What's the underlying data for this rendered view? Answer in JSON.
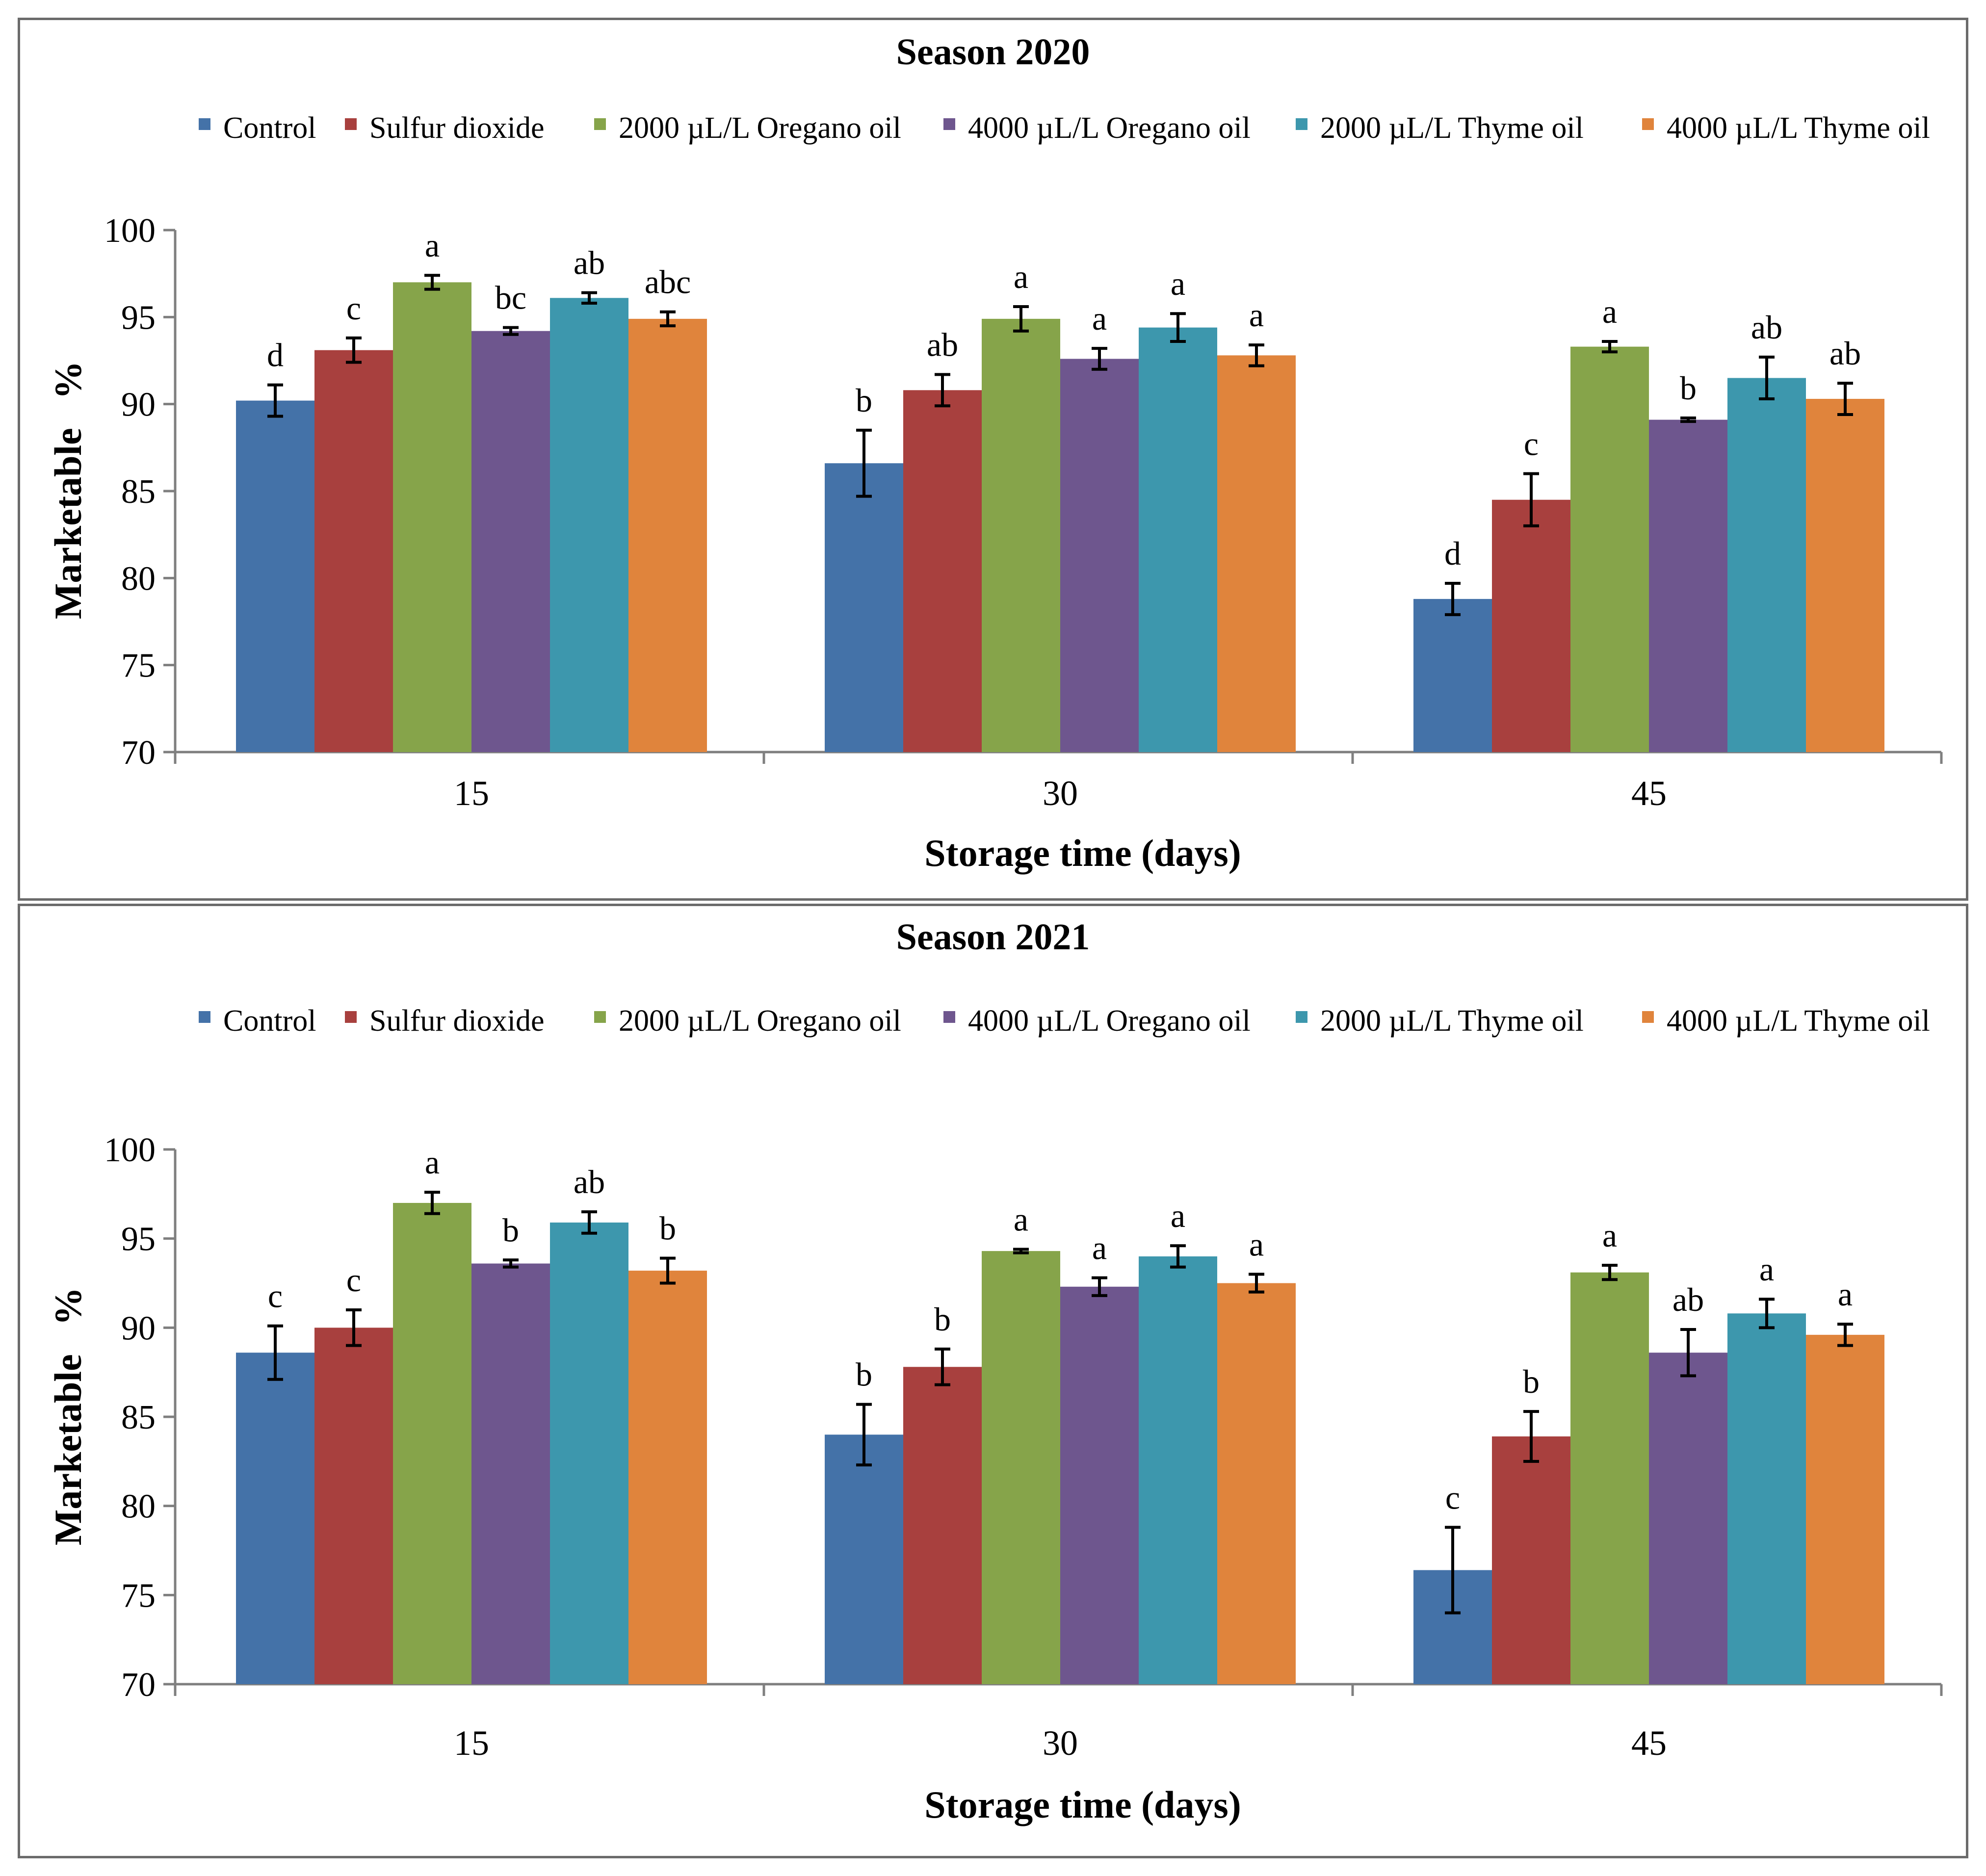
{
  "chart_data": [
    {
      "type": "bar",
      "title": "Season 2020",
      "xlabel": "Storage time (days)",
      "ylabel": "Marketable %",
      "ylim": [
        70,
        100
      ],
      "yticks": [
        70,
        75,
        80,
        85,
        90,
        95,
        100
      ],
      "categories": [
        "15",
        "30",
        "45"
      ],
      "legend_position": "top",
      "series": [
        {
          "name": "Control",
          "color": "#4472a8",
          "values": [
            90.2,
            86.6,
            78.8
          ],
          "errors": [
            0.9,
            1.9,
            0.9
          ],
          "letters": [
            "d",
            "b",
            "d"
          ]
        },
        {
          "name": "Sulfur dioxide",
          "color": "#a8403e",
          "values": [
            93.1,
            90.8,
            84.5
          ],
          "errors": [
            0.7,
            0.9,
            1.5
          ],
          "letters": [
            "c",
            "ab",
            "c"
          ]
        },
        {
          "name": "2000 µL/L Oregano oil",
          "color": "#86a44a",
          "values": [
            97.0,
            94.9,
            93.3
          ],
          "errors": [
            0.4,
            0.7,
            0.3
          ],
          "letters": [
            "a",
            "a",
            "a"
          ]
        },
        {
          "name": "4000 µL/L Oregano oil",
          "color": "#6e568e",
          "values": [
            94.2,
            92.6,
            89.1
          ],
          "errors": [
            0.2,
            0.6,
            0.1
          ],
          "letters": [
            "bc",
            "a",
            "b"
          ]
        },
        {
          "name": "2000 µL/L Thyme oil",
          "color": "#3d97ad",
          "values": [
            96.1,
            94.4,
            91.5
          ],
          "errors": [
            0.3,
            0.8,
            1.2
          ],
          "letters": [
            "ab",
            "a",
            "ab"
          ]
        },
        {
          "name": "4000 µL/L Thyme oil",
          "color": "#e0843c",
          "values": [
            94.9,
            92.8,
            90.3
          ],
          "errors": [
            0.4,
            0.6,
            0.9
          ],
          "letters": [
            "abc",
            "a",
            "ab"
          ]
        }
      ]
    },
    {
      "type": "bar",
      "title": "Season 2021",
      "xlabel": "Storage time (days)",
      "ylabel": "Marketable %",
      "ylim": [
        70,
        100
      ],
      "yticks": [
        70,
        75,
        80,
        85,
        90,
        95,
        100
      ],
      "categories": [
        "15",
        "30",
        "45"
      ],
      "legend_position": "top",
      "series": [
        {
          "name": "Control",
          "color": "#4472a8",
          "values": [
            88.6,
            84.0,
            76.4
          ],
          "errors": [
            1.5,
            1.7,
            2.4
          ],
          "letters": [
            "c",
            "b",
            "c"
          ]
        },
        {
          "name": "Sulfur dioxide",
          "color": "#a8403e",
          "values": [
            90.0,
            87.8,
            83.9
          ],
          "errors": [
            1.0,
            1.0,
            1.4
          ],
          "letters": [
            "c",
            "b",
            "b"
          ]
        },
        {
          "name": "2000 µL/L Oregano oil",
          "color": "#86a44a",
          "values": [
            97.0,
            94.3,
            93.1
          ],
          "errors": [
            0.6,
            0.1,
            0.4
          ],
          "letters": [
            "a",
            "a",
            "a"
          ]
        },
        {
          "name": "4000 µL/L Oregano oil",
          "color": "#6e568e",
          "values": [
            93.6,
            92.3,
            88.6
          ],
          "errors": [
            0.2,
            0.5,
            1.3
          ],
          "letters": [
            "b",
            "a",
            "ab"
          ]
        },
        {
          "name": "2000 µL/L Thyme oil",
          "color": "#3d97ad",
          "values": [
            95.9,
            94.0,
            90.8
          ],
          "errors": [
            0.6,
            0.6,
            0.8
          ],
          "letters": [
            "ab",
            "a",
            "a"
          ]
        },
        {
          "name": "4000 µL/L Thyme oil",
          "color": "#e0843c",
          "values": [
            93.2,
            92.5,
            89.6
          ],
          "errors": [
            0.7,
            0.5,
            0.6
          ],
          "letters": [
            "b",
            "a",
            "a"
          ]
        }
      ]
    }
  ]
}
